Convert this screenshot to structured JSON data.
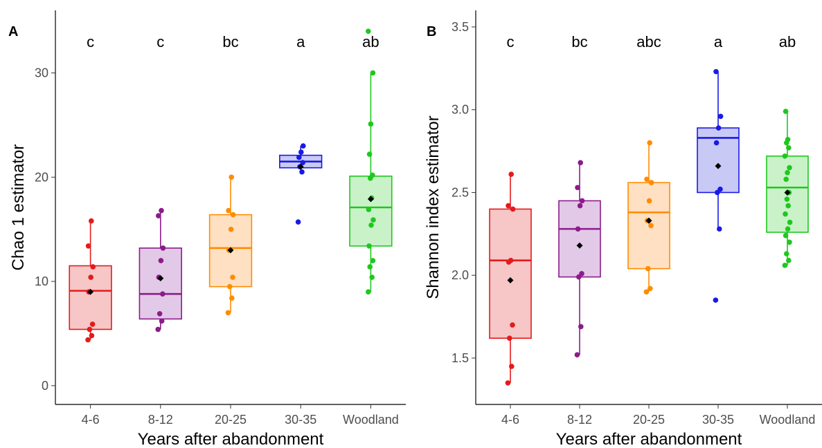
{
  "chart_data": [
    {
      "type": "box",
      "panel": "A",
      "title": "",
      "xlabel": "Years after abandonment",
      "ylabel": "Chao 1 estimator",
      "categories": [
        "4-6",
        "8-12",
        "20-25",
        "30-35",
        "Woodland"
      ],
      "ylim": [
        -1.8,
        36
      ],
      "yticks": [
        0,
        10,
        20,
        30
      ],
      "ytick_labels": [
        "0",
        "10",
        "20",
        "30"
      ],
      "grid": false,
      "legend": "none",
      "letters": [
        "c",
        "c",
        "bc",
        "a",
        "ab"
      ],
      "colors": [
        "#e41a1c",
        "#8b1c8b",
        "#ff8c00",
        "#1a1ae6",
        "#1ec81e"
      ],
      "fills": [
        "#f7c6c6",
        "#e3c9e8",
        "#ffe0c2",
        "#c9c9f5",
        "#c9f2c9"
      ],
      "boxes": [
        {
          "q1": 5.4,
          "median": 9.1,
          "q3": 11.5,
          "whisker_low": 4.4,
          "whisker_high": 15.8,
          "mean": 9.0
        },
        {
          "q1": 6.4,
          "median": 8.8,
          "q3": 13.2,
          "whisker_low": 5.4,
          "whisker_high": 16.8,
          "mean": 10.3
        },
        {
          "q1": 9.5,
          "median": 13.2,
          "q3": 16.4,
          "whisker_low": 7.0,
          "whisker_high": 20.0,
          "mean": 13.0
        },
        {
          "q1": 20.9,
          "median": 21.5,
          "q3": 22.1,
          "whisker_low": 20.5,
          "whisker_high": 23.0,
          "mean": 21.0
        },
        {
          "q1": 13.4,
          "median": 17.1,
          "q3": 20.1,
          "whisker_low": 9.0,
          "whisker_high": 30.0,
          "mean": 17.9
        }
      ],
      "points": [
        [
          4.4,
          4.8,
          5.4,
          5.9,
          9.0,
          10.4,
          11.4,
          13.4,
          15.8
        ],
        [
          5.4,
          6.2,
          6.9,
          8.8,
          10.4,
          12.0,
          13.2,
          16.3,
          16.8
        ],
        [
          7.0,
          8.4,
          9.5,
          10.4,
          13.0,
          15.0,
          16.4,
          16.8,
          20.0
        ],
        [
          15.7,
          20.5,
          21.0,
          21.4,
          21.9,
          22.4,
          23.0
        ],
        [
          9.0,
          10.4,
          11.4,
          12.0,
          13.4,
          15.4,
          15.9,
          16.9,
          18.0,
          19.9,
          20.2,
          22.2,
          25.1,
          30.0,
          34.0
        ]
      ]
    },
    {
      "type": "box",
      "panel": "B",
      "title": "",
      "xlabel": "Years after abandonment",
      "ylabel": "Shannon index estimator",
      "categories": [
        "4-6",
        "8-12",
        "20-25",
        "30-35",
        "Woodland"
      ],
      "ylim": [
        1.22,
        3.6
      ],
      "yticks": [
        1.5,
        2.0,
        2.5,
        3.0,
        3.5
      ],
      "ytick_labels": [
        "1.5",
        "2.0",
        "2.5",
        "3.0",
        "3.5"
      ],
      "grid": false,
      "legend": "none",
      "letters": [
        "c",
        "bc",
        "abc",
        "a",
        "ab"
      ],
      "colors": [
        "#e41a1c",
        "#8b1c8b",
        "#ff8c00",
        "#1a1ae6",
        "#1ec81e"
      ],
      "fills": [
        "#f7c6c6",
        "#e3c9e8",
        "#ffe0c2",
        "#c9c9f5",
        "#c9f2c9"
      ],
      "boxes": [
        {
          "q1": 1.62,
          "median": 2.09,
          "q3": 2.4,
          "whisker_low": 1.35,
          "whisker_high": 2.61,
          "mean": 1.97
        },
        {
          "q1": 1.99,
          "median": 2.28,
          "q3": 2.45,
          "whisker_low": 1.52,
          "whisker_high": 2.68,
          "mean": 2.18
        },
        {
          "q1": 2.04,
          "median": 2.38,
          "q3": 2.56,
          "whisker_low": 1.9,
          "whisker_high": 2.8,
          "mean": 2.33
        },
        {
          "q1": 2.5,
          "median": 2.83,
          "q3": 2.89,
          "whisker_low": 2.28,
          "whisker_high": 3.23,
          "mean": 2.66
        },
        {
          "q1": 2.26,
          "median": 2.53,
          "q3": 2.72,
          "whisker_low": 2.06,
          "whisker_high": 2.99,
          "mean": 2.5
        }
      ],
      "points": [
        [
          1.35,
          1.45,
          1.62,
          1.7,
          2.08,
          2.09,
          2.4,
          2.42,
          2.61
        ],
        [
          1.52,
          1.69,
          1.99,
          2.01,
          2.28,
          2.42,
          2.45,
          2.53,
          2.68
        ],
        [
          1.9,
          1.92,
          2.04,
          2.3,
          2.33,
          2.45,
          2.56,
          2.58,
          2.8
        ],
        [
          1.85,
          2.28,
          2.5,
          2.52,
          2.8,
          2.89,
          2.96,
          3.23
        ],
        [
          2.06,
          2.09,
          2.13,
          2.2,
          2.24,
          2.28,
          2.32,
          2.37,
          2.42,
          2.46,
          2.5,
          2.58,
          2.62,
          2.65,
          2.72,
          2.77,
          2.8,
          2.82,
          2.99
        ]
      ]
    }
  ]
}
